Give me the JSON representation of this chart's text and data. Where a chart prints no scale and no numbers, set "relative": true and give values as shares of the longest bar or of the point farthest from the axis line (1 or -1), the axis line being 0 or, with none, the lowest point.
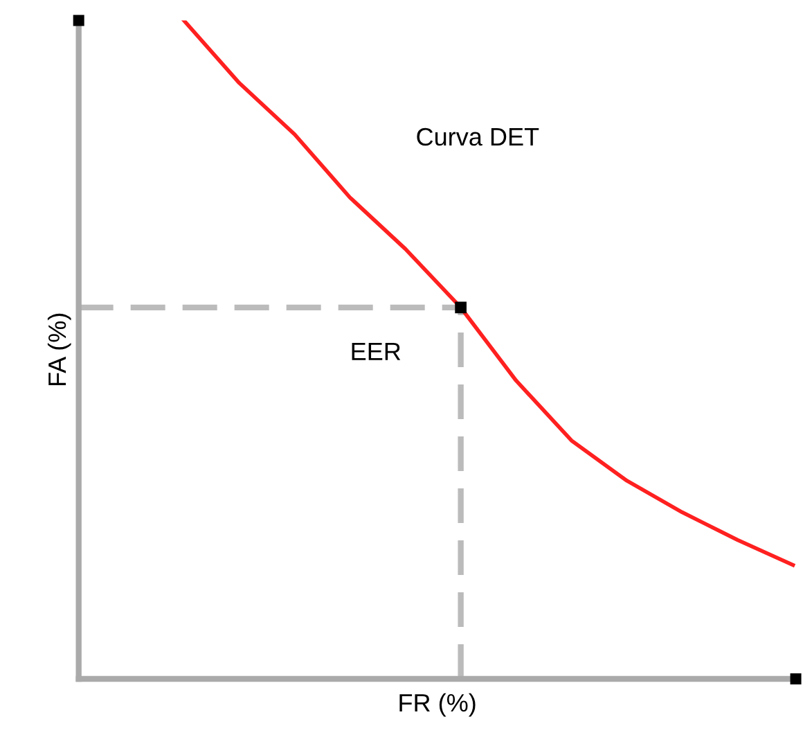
{
  "chart_data": {
    "type": "line",
    "relative": true,
    "xlabel": "FR (%)",
    "ylabel": "FA (%)",
    "legend": false,
    "categories": [
      null,
      null,
      null,
      null,
      null,
      null,
      null,
      null,
      null,
      null,
      null,
      null
    ],
    "series": [
      {
        "color": "#ff2020",
        "values": [
          1,
          0.905,
          0.827,
          0.731,
          0.653,
          0.564,
          0.453,
          0.362,
          0.301,
          0.253,
          0.211,
          0.173
        ]
      }
    ],
    "ref_lines": [
      {
        "axis": "y",
        "value": 0.564,
        "color": "#bbbbbb",
        "line_style": "dashed"
      }
    ],
    "annotations": [
      "Curva DET",
      "EER"
    ]
  }
}
